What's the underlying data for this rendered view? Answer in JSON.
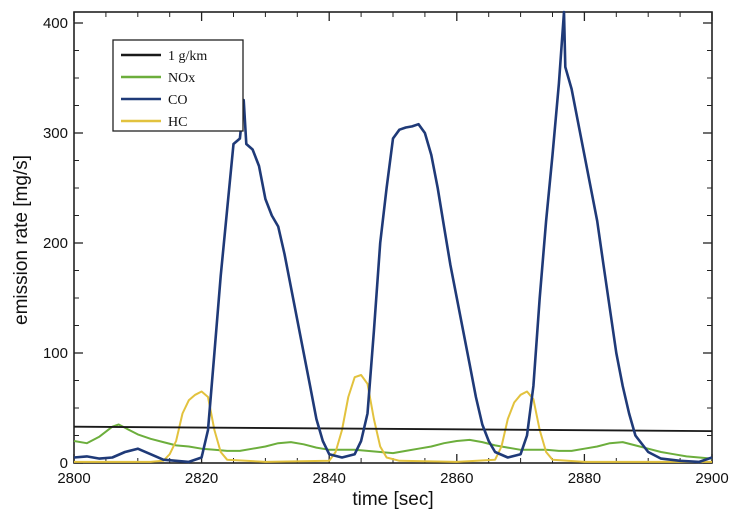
{
  "chart_data": {
    "type": "line",
    "xlabel": "time [sec]",
    "ylabel": "emission rate [mg/s]",
    "xlim": [
      2800,
      2900
    ],
    "ylim": [
      0,
      410
    ],
    "x_ticks": [
      2800,
      2820,
      2840,
      2860,
      2880,
      2900
    ],
    "y_ticks": [
      0,
      100,
      200,
      300,
      400
    ],
    "grid": false,
    "legend_position": "top-left",
    "series": [
      {
        "name": "1 g/km",
        "color": "#1a1a1a",
        "points": [
          [
            2800,
            33
          ],
          [
            2900,
            29
          ]
        ]
      },
      {
        "name": "NOx",
        "color": "#6cae3c",
        "points": [
          [
            2800,
            20
          ],
          [
            2802,
            18
          ],
          [
            2804,
            24
          ],
          [
            2806,
            33
          ],
          [
            2807,
            35
          ],
          [
            2808,
            32
          ],
          [
            2810,
            26
          ],
          [
            2812,
            22
          ],
          [
            2814,
            19
          ],
          [
            2816,
            16
          ],
          [
            2818,
            15
          ],
          [
            2820,
            13
          ],
          [
            2822,
            12
          ],
          [
            2824,
            11
          ],
          [
            2826,
            11
          ],
          [
            2828,
            13
          ],
          [
            2830,
            15
          ],
          [
            2832,
            18
          ],
          [
            2834,
            19
          ],
          [
            2836,
            17
          ],
          [
            2838,
            14
          ],
          [
            2840,
            12
          ],
          [
            2842,
            12
          ],
          [
            2844,
            12
          ],
          [
            2846,
            11
          ],
          [
            2848,
            10
          ],
          [
            2850,
            9
          ],
          [
            2852,
            11
          ],
          [
            2854,
            13
          ],
          [
            2856,
            15
          ],
          [
            2858,
            18
          ],
          [
            2860,
            20
          ],
          [
            2862,
            21
          ],
          [
            2864,
            19
          ],
          [
            2866,
            16
          ],
          [
            2868,
            14
          ],
          [
            2870,
            12
          ],
          [
            2872,
            12
          ],
          [
            2874,
            12
          ],
          [
            2876,
            11
          ],
          [
            2878,
            11
          ],
          [
            2880,
            13
          ],
          [
            2882,
            15
          ],
          [
            2884,
            18
          ],
          [
            2886,
            19
          ],
          [
            2888,
            16
          ],
          [
            2890,
            13
          ],
          [
            2892,
            10
          ],
          [
            2894,
            8
          ],
          [
            2896,
            6
          ],
          [
            2898,
            5
          ],
          [
            2900,
            4
          ]
        ]
      },
      {
        "name": "CO",
        "color": "#1f3a78",
        "points": [
          [
            2800,
            5
          ],
          [
            2802,
            6
          ],
          [
            2804,
            4
          ],
          [
            2806,
            5
          ],
          [
            2808,
            10
          ],
          [
            2810,
            13
          ],
          [
            2812,
            8
          ],
          [
            2814,
            3
          ],
          [
            2816,
            2
          ],
          [
            2818,
            1
          ],
          [
            2820,
            5
          ],
          [
            2821,
            30
          ],
          [
            2822,
            100
          ],
          [
            2823,
            170
          ],
          [
            2824,
            230
          ],
          [
            2825,
            290
          ],
          [
            2826,
            295
          ],
          [
            2826.6,
            330
          ],
          [
            2827,
            290
          ],
          [
            2828,
            285
          ],
          [
            2829,
            270
          ],
          [
            2830,
            240
          ],
          [
            2831,
            225
          ],
          [
            2832,
            215
          ],
          [
            2833,
            190
          ],
          [
            2834,
            160
          ],
          [
            2835,
            130
          ],
          [
            2836,
            100
          ],
          [
            2837,
            70
          ],
          [
            2838,
            40
          ],
          [
            2839,
            20
          ],
          [
            2840,
            8
          ],
          [
            2842,
            5
          ],
          [
            2844,
            8
          ],
          [
            2845,
            20
          ],
          [
            2846,
            45
          ],
          [
            2847,
            120
          ],
          [
            2848,
            200
          ],
          [
            2849,
            250
          ],
          [
            2850,
            295
          ],
          [
            2851,
            303
          ],
          [
            2852,
            305
          ],
          [
            2853,
            306
          ],
          [
            2854,
            308
          ],
          [
            2855,
            300
          ],
          [
            2856,
            280
          ],
          [
            2857,
            250
          ],
          [
            2858,
            215
          ],
          [
            2859,
            180
          ],
          [
            2860,
            150
          ],
          [
            2861,
            120
          ],
          [
            2862,
            90
          ],
          [
            2863,
            60
          ],
          [
            2864,
            35
          ],
          [
            2865,
            20
          ],
          [
            2866,
            10
          ],
          [
            2868,
            5
          ],
          [
            2870,
            8
          ],
          [
            2871,
            25
          ],
          [
            2872,
            70
          ],
          [
            2873,
            150
          ],
          [
            2874,
            220
          ],
          [
            2875,
            280
          ],
          [
            2876,
            345
          ],
          [
            2876.8,
            410
          ],
          [
            2877,
            360
          ],
          [
            2878,
            340
          ],
          [
            2879,
            310
          ],
          [
            2880,
            280
          ],
          [
            2881,
            250
          ],
          [
            2882,
            220
          ],
          [
            2883,
            180
          ],
          [
            2884,
            140
          ],
          [
            2885,
            100
          ],
          [
            2886,
            70
          ],
          [
            2887,
            45
          ],
          [
            2888,
            25
          ],
          [
            2890,
            10
          ],
          [
            2892,
            4
          ],
          [
            2895,
            2
          ],
          [
            2898,
            1
          ],
          [
            2900,
            5
          ]
        ]
      },
      {
        "name": "HC",
        "color": "#e2c23e",
        "points": [
          [
            2800,
            1
          ],
          [
            2812,
            1
          ],
          [
            2814,
            2
          ],
          [
            2815,
            8
          ],
          [
            2816,
            20
          ],
          [
            2817,
            45
          ],
          [
            2818,
            57
          ],
          [
            2819,
            62
          ],
          [
            2820,
            65
          ],
          [
            2821,
            60
          ],
          [
            2822,
            30
          ],
          [
            2823,
            10
          ],
          [
            2824,
            3
          ],
          [
            2830,
            1
          ],
          [
            2840,
            2
          ],
          [
            2841,
            10
          ],
          [
            2842,
            30
          ],
          [
            2843,
            60
          ],
          [
            2844,
            78
          ],
          [
            2845,
            80
          ],
          [
            2846,
            72
          ],
          [
            2847,
            40
          ],
          [
            2848,
            15
          ],
          [
            2849,
            5
          ],
          [
            2851,
            2
          ],
          [
            2860,
            1
          ],
          [
            2866,
            3
          ],
          [
            2867,
            15
          ],
          [
            2868,
            40
          ],
          [
            2869,
            55
          ],
          [
            2870,
            62
          ],
          [
            2871,
            65
          ],
          [
            2872,
            58
          ],
          [
            2873,
            30
          ],
          [
            2874,
            10
          ],
          [
            2875,
            3
          ],
          [
            2880,
            1
          ],
          [
            2900,
            1
          ]
        ]
      }
    ]
  }
}
